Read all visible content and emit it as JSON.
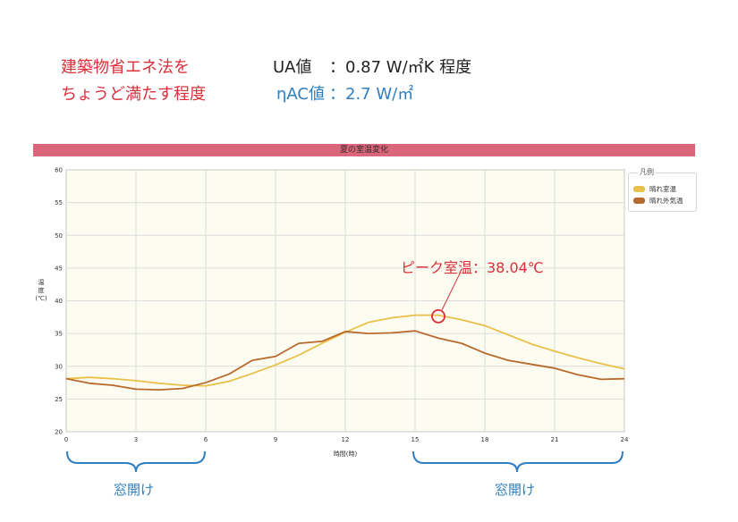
{
  "header": {
    "left_line1": "建築物省エネ法を",
    "left_line2": "ちょうど満たす程度",
    "ua_label": "UA値",
    "ua_value": "：0.87 W/㎡K 程度",
    "eta_label": "ηAC値",
    "eta_value": "：2.7 W/㎡"
  },
  "annotations": {
    "peak_label": "ピーク室温：38.04℃",
    "window_open_1": "窓開け",
    "window_open_2": "窓開け"
  },
  "colors": {
    "indoor": "#e8c04a",
    "outdoor": "#b86a2c",
    "band": "#d9667a",
    "annotation_red": "#d9303a",
    "annotation_blue": "#2f7fc0"
  },
  "chart_data": {
    "type": "line",
    "title": "夏の室温変化",
    "xlabel": "時間(時)",
    "ylabel": "温度(℃)",
    "xlim": [
      0,
      24
    ],
    "ylim": [
      20,
      60
    ],
    "x_ticks": [
      0,
      3,
      6,
      9,
      12,
      15,
      18,
      21,
      24
    ],
    "y_ticks": [
      20,
      25,
      30,
      35,
      40,
      45,
      50,
      55,
      60
    ],
    "grid": true,
    "legend_title": "凡例",
    "legend_position": "right",
    "x": [
      0,
      1,
      2,
      3,
      4,
      5,
      6,
      7,
      8,
      9,
      10,
      11,
      12,
      13,
      14,
      15,
      16,
      17,
      18,
      19,
      20,
      21,
      22,
      23,
      24
    ],
    "series": [
      {
        "name": "晴れ室温",
        "values": [
          28.1,
          28.3,
          28.1,
          27.8,
          27.4,
          27.1,
          27.0,
          27.7,
          28.9,
          30.2,
          31.7,
          33.5,
          35.2,
          36.7,
          37.4,
          37.8,
          37.8,
          37.1,
          36.2,
          34.8,
          33.4,
          32.3,
          31.3,
          30.4,
          29.6
        ]
      },
      {
        "name": "晴れ外気温",
        "values": [
          28.1,
          27.4,
          27.1,
          26.5,
          26.4,
          26.6,
          27.5,
          28.8,
          30.9,
          31.5,
          33.5,
          33.8,
          35.3,
          35.0,
          35.1,
          35.4,
          34.3,
          33.5,
          32.0,
          30.9,
          30.3,
          29.7,
          28.7,
          28.0,
          28.1
        ]
      }
    ],
    "peak": {
      "x": 16,
      "y": 38.04
    }
  }
}
